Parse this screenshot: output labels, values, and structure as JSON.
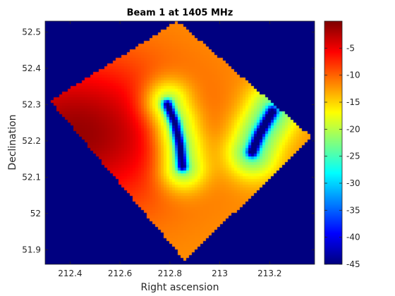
{
  "chart_data": {
    "type": "heatmap",
    "title": "Beam 1 at 1405 MHz",
    "xlabel": "Right ascension",
    "ylabel": "Declination",
    "xlim": [
      212.3,
      213.38
    ],
    "ylim": [
      51.86,
      52.53
    ],
    "x_reversed": false,
    "xticks": [
      212.4,
      212.6,
      212.8,
      213,
      213.2
    ],
    "xtick_labels": [
      "212.4",
      "212.6",
      "212.8",
      "213",
      "213.2"
    ],
    "yticks": [
      51.9,
      52,
      52.1,
      52.2,
      52.3,
      52.4,
      52.5
    ],
    "ytick_labels": [
      "51.9",
      "52",
      "52.1",
      "52.2",
      "52.3",
      "52.4",
      "52.5"
    ],
    "background_value": -45,
    "colorbar": {
      "colormap": "jet",
      "min": -45,
      "max": 0,
      "ticks": [
        -5,
        -10,
        -15,
        -20,
        -25,
        -30,
        -35,
        -40,
        -45
      ],
      "tick_labels": [
        "-5",
        "-10",
        "-15",
        "-20",
        "-25",
        "-30",
        "-35",
        "-40",
        "-45"
      ]
    },
    "footprint_corners": [
      [
        212.32,
        52.31
      ],
      [
        212.83,
        52.53
      ],
      [
        213.37,
        52.21
      ],
      [
        212.86,
        51.87
      ]
    ],
    "features": {
      "peak": {
        "x": 212.42,
        "y": 52.22,
        "value": -1
      },
      "null_left": {
        "curve": [
          [
            212.79,
            52.3
          ],
          [
            212.82,
            52.25
          ],
          [
            212.84,
            52.19
          ],
          [
            212.85,
            52.13
          ]
        ],
        "value": -42
      },
      "null_right": {
        "curve": [
          [
            213.13,
            52.17
          ],
          [
            213.16,
            52.22
          ],
          [
            213.21,
            52.28
          ]
        ],
        "value": -42
      }
    }
  }
}
